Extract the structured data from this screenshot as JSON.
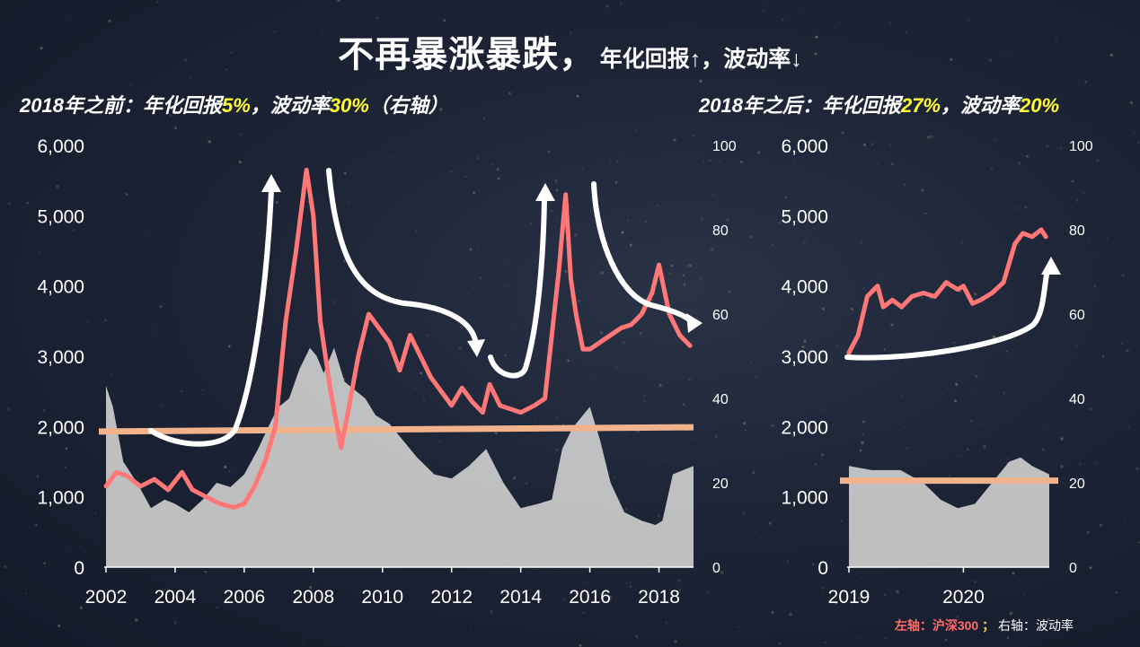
{
  "title": {
    "main": "不再暴涨暴跌，",
    "sub": "年化回报↑，波动率↓"
  },
  "left_header": {
    "prefix": "2018年之前：年化回报",
    "ret": "5%",
    "mid": "，波动率",
    "vol": "30%",
    "suffix": "（右轴）"
  },
  "right_header": {
    "prefix": "2018年之后：年化回报",
    "ret": "27%",
    "mid": "，波动率",
    "vol": "20%"
  },
  "footer": {
    "left_axis": "左轴：沪深300",
    "sep": "；",
    "right_axis": "右轴：波动率"
  },
  "colors": {
    "index_line": "#ff7777",
    "volatility_area": "#c8c8c8",
    "reference_line": "#f2b28c",
    "arrow": "#ffffff",
    "highlight": "#ffff33"
  },
  "chart_data": [
    {
      "type": "line+area",
      "x_ticks": [
        "2002",
        "2004",
        "2006",
        "2008",
        "2010",
        "2012",
        "2014",
        "2016",
        "2018"
      ],
      "left_axis": {
        "ticks": [
          "0",
          "1,000",
          "2,000",
          "3,000",
          "4,000",
          "5,000",
          "6,000"
        ],
        "ylim": [
          0,
          6000
        ]
      },
      "right_axis": {
        "ticks": [
          "0",
          "20",
          "40",
          "60",
          "80",
          "100"
        ],
        "ylim": [
          0,
          100
        ]
      },
      "xlim": [
        2002.0,
        2019.0
      ],
      "series": [
        {
          "axis": "left",
          "x": [
            2002.0,
            2002.3,
            2002.6,
            2003.0,
            2003.4,
            2003.8,
            2004.2,
            2004.5,
            2004.9,
            2005.3,
            2005.7,
            2006.0,
            2006.3,
            2006.6,
            2006.9,
            2007.2,
            2007.5,
            2007.8,
            2008.0,
            2008.2,
            2008.5,
            2008.8,
            2009.0,
            2009.3,
            2009.6,
            2009.9,
            2010.2,
            2010.5,
            2010.8,
            2011.1,
            2011.4,
            2011.7,
            2012.0,
            2012.3,
            2012.6,
            2012.9,
            2013.1,
            2013.4,
            2013.7,
            2014.0,
            2014.4,
            2014.7,
            2014.9,
            2015.1,
            2015.3,
            2015.45,
            2015.6,
            2015.8,
            2016.0,
            2016.3,
            2016.6,
            2016.9,
            2017.2,
            2017.5,
            2017.8,
            2018.0,
            2018.3,
            2018.6,
            2018.9
          ],
          "values": [
            1150,
            1350,
            1300,
            1150,
            1250,
            1100,
            1350,
            1100,
            1000,
            900,
            850,
            900,
            1150,
            1500,
            2000,
            3500,
            4500,
            5650,
            5000,
            3500,
            2500,
            1700,
            2200,
            3000,
            3600,
            3400,
            3200,
            2800,
            3300,
            3000,
            2700,
            2500,
            2300,
            2550,
            2350,
            2200,
            2600,
            2300,
            2250,
            2200,
            2300,
            2400,
            3300,
            4200,
            5300,
            4100,
            3600,
            3100,
            3100,
            3200,
            3300,
            3400,
            3450,
            3600,
            3900,
            4300,
            3600,
            3300,
            3150
          ]
        },
        {
          "axis": "right",
          "x": [
            2002.0,
            2002.2,
            2002.5,
            2002.9,
            2003.3,
            2003.7,
            2004.0,
            2004.4,
            2004.8,
            2005.2,
            2005.6,
            2006.0,
            2006.4,
            2006.8,
            2007.0,
            2007.3,
            2007.6,
            2007.9,
            2008.1,
            2008.3,
            2008.6,
            2008.9,
            2009.2,
            2009.5,
            2009.8,
            2010.2,
            2010.6,
            2011.0,
            2011.5,
            2012.0,
            2012.5,
            2013.0,
            2013.5,
            2014.0,
            2014.5,
            2014.9,
            2015.2,
            2015.5,
            2015.8,
            2016.0,
            2016.3,
            2016.6,
            2017.0,
            2017.5,
            2017.9,
            2018.1,
            2018.4,
            2018.7,
            2019.0
          ],
          "values": [
            43,
            38,
            25,
            20,
            14,
            16,
            15,
            13,
            16,
            20,
            19,
            22,
            28,
            35,
            38,
            40,
            47,
            52,
            50,
            46,
            52,
            44,
            42,
            40,
            36,
            34,
            30,
            26,
            22,
            21,
            24,
            28,
            20,
            14,
            15,
            16,
            28,
            33,
            36,
            38,
            30,
            20,
            13,
            11,
            10,
            11,
            22,
            23,
            24
          ]
        }
      ],
      "reference_line": {
        "axis": "left",
        "values": [
          1930,
          1990
        ]
      }
    },
    {
      "type": "line+area",
      "x_ticks": [
        "2019",
        "2020"
      ],
      "left_axis": {
        "ticks": [
          "0",
          "1,000",
          "2,000",
          "3,000",
          "4,000",
          "5,000",
          "6,000"
        ],
        "ylim": [
          0,
          6000
        ]
      },
      "right_axis": {
        "ticks": [
          "0",
          "20",
          "40",
          "60",
          "80",
          "100"
        ],
        "ylim": [
          0,
          100
        ]
      },
      "xlim": [
        2019.0,
        2020.75
      ],
      "series": [
        {
          "axis": "left",
          "x": [
            2019.0,
            2019.08,
            2019.16,
            2019.25,
            2019.3,
            2019.38,
            2019.46,
            2019.55,
            2019.65,
            2019.75,
            2019.85,
            2019.95,
            2020.0,
            2020.08,
            2020.15,
            2020.25,
            2020.35,
            2020.45,
            2020.52,
            2020.6,
            2020.68,
            2020.72
          ],
          "values": [
            3050,
            3300,
            3850,
            4000,
            3700,
            3800,
            3700,
            3850,
            3900,
            3850,
            4050,
            3950,
            4000,
            3750,
            3800,
            3900,
            4050,
            4600,
            4750,
            4700,
            4800,
            4700
          ]
        },
        {
          "axis": "right",
          "x": [
            2019.0,
            2019.2,
            2019.45,
            2019.65,
            2019.8,
            2019.95,
            2020.1,
            2020.25,
            2020.4,
            2020.5,
            2020.6,
            2020.75
          ],
          "values": [
            24,
            23,
            23,
            20,
            16,
            14,
            15,
            20,
            25,
            26,
            24,
            22
          ]
        }
      ],
      "reference_line": {
        "axis": "right",
        "values": [
          20.5,
          20.5
        ]
      }
    }
  ]
}
